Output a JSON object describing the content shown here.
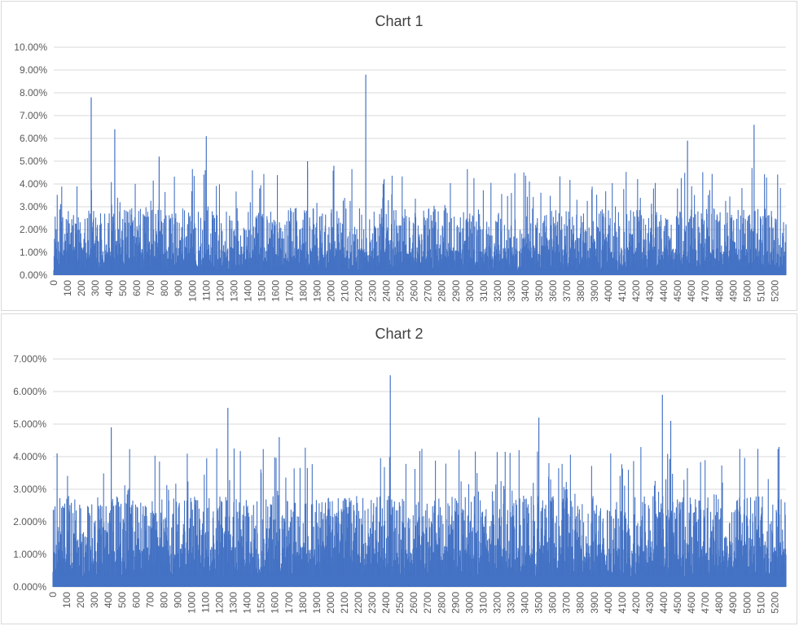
{
  "chart_data": [
    {
      "type": "bar",
      "title": "Chart 1",
      "xlabel": "",
      "ylabel": "",
      "ylim": [
        0,
        0.1
      ],
      "y_ticks": [
        "0.00%",
        "1.00%",
        "2.00%",
        "3.00%",
        "4.00%",
        "5.00%",
        "6.00%",
        "7.00%",
        "8.00%",
        "9.00%",
        "10.00%"
      ],
      "x_ticks": [
        "0",
        "100",
        "200",
        "300",
        "400",
        "500",
        "600",
        "700",
        "800",
        "900",
        "1000",
        "1100",
        "1200",
        "1300",
        "1400",
        "1500",
        "1600",
        "1700",
        "1800",
        "1900",
        "2000",
        "2100",
        "2200",
        "2300",
        "2400",
        "2500",
        "2600",
        "2700",
        "2800",
        "2900",
        "3000",
        "3100",
        "3200",
        "3300",
        "3400",
        "3500",
        "3600",
        "3700",
        "3800",
        "3900",
        "4000",
        "4100",
        "4200",
        "4300",
        "4400",
        "4500",
        "4600",
        "4700",
        "4800",
        "4900",
        "5000",
        "5100",
        "5200"
      ],
      "x_range": [
        0,
        5280
      ],
      "grid": true,
      "bar_color": "#4472c4",
      "notable_values": [
        {
          "x": 270,
          "y": 0.078
        },
        {
          "x": 2250,
          "y": 0.088
        },
        {
          "x": 440,
          "y": 0.064
        },
        {
          "x": 1100,
          "y": 0.061
        },
        {
          "x": 5050,
          "y": 0.066
        },
        {
          "x": 4570,
          "y": 0.059
        },
        {
          "x": 760,
          "y": 0.052
        },
        {
          "x": 1830,
          "y": 0.05
        },
        {
          "x": 2020,
          "y": 0.048
        }
      ],
      "baseline_range": [
        0.002,
        0.012
      ],
      "typical_peak": 0.035
    },
    {
      "type": "bar",
      "title": "Chart 2",
      "xlabel": "",
      "ylabel": "",
      "ylim": [
        0,
        0.07
      ],
      "y_ticks": [
        "0.000%",
        "1.000%",
        "2.000%",
        "3.000%",
        "4.000%",
        "5.000%",
        "6.000%",
        "7.000%"
      ],
      "x_ticks": [
        "0",
        "100",
        "200",
        "300",
        "400",
        "500",
        "600",
        "700",
        "800",
        "900",
        "1000",
        "1100",
        "1200",
        "1300",
        "1400",
        "1500",
        "1600",
        "1700",
        "1800",
        "1900",
        "2000",
        "2100",
        "2200",
        "2300",
        "2400",
        "2500",
        "2600",
        "2700",
        "2800",
        "2900",
        "3000",
        "3100",
        "3200",
        "3300",
        "3400",
        "3500",
        "3600",
        "3700",
        "3800",
        "3900",
        "4000",
        "4100",
        "4200",
        "4300",
        "4400",
        "4500",
        "4600",
        "4700",
        "4800",
        "4900",
        "5000",
        "5100",
        "5200"
      ],
      "x_range": [
        0,
        5280
      ],
      "grid": true,
      "bar_color": "#4472c4",
      "notable_values": [
        {
          "x": 2430,
          "y": 0.065
        },
        {
          "x": 4390,
          "y": 0.059
        },
        {
          "x": 1260,
          "y": 0.055
        },
        {
          "x": 3500,
          "y": 0.052
        },
        {
          "x": 4450,
          "y": 0.051
        },
        {
          "x": 420,
          "y": 0.049
        },
        {
          "x": 1630,
          "y": 0.046
        },
        {
          "x": 30,
          "y": 0.041
        },
        {
          "x": 5230,
          "y": 0.043
        }
      ],
      "baseline_range": [
        0.003,
        0.013
      ],
      "typical_peak": 0.03
    }
  ]
}
